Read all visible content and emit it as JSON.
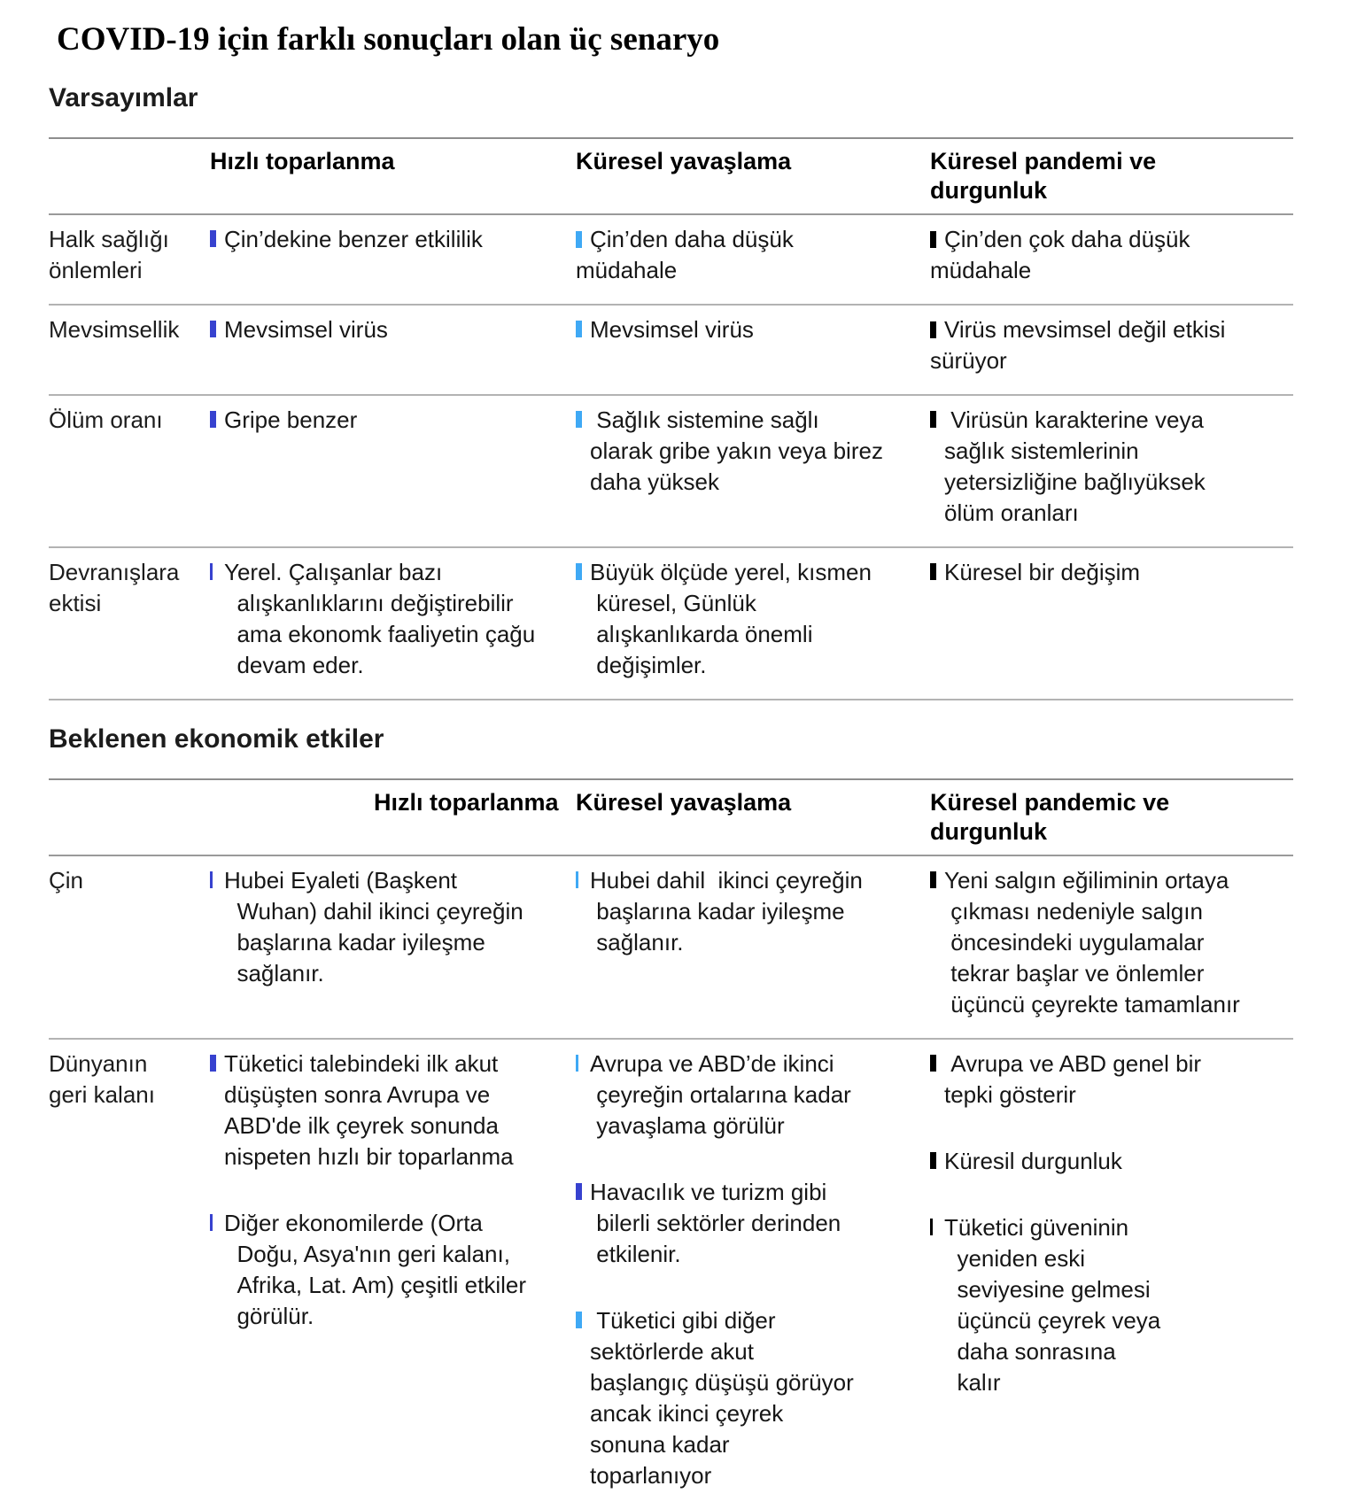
{
  "page_title": "COVID-19 için farklı sonuçları olan üç senaryo",
  "colors": {
    "dark_blue": "#3742cf",
    "light_blue": "#3fa9f5",
    "black": "#000000"
  },
  "sections": [
    {
      "heading": "Varsayımlar",
      "columns": [
        "Hızlı toparlanma",
        "Küresel yavaşlama",
        "Küresel pandemi ve\ndurgunluk"
      ],
      "rows": [
        {
          "label": "Halk sağlığı\nönlemleri",
          "cells": [
            {
              "items": [
                {
                  "text": "Çin’dekine benzer etkililik",
                  "bullet": "dark_blue",
                  "weight": "thick",
                  "hang": true
                }
              ]
            },
            {
              "items": [
                {
                  "text": "Çin’den daha düşük\nmüdahale",
                  "bullet": "light_blue",
                  "weight": "thick",
                  "hang": false
                }
              ]
            },
            {
              "items": [
                {
                  "text": "Çin’den çok daha düşük\nmüdahale",
                  "bullet": "black",
                  "weight": "thick",
                  "hang": false
                }
              ]
            }
          ]
        },
        {
          "label": "Mevsimsellik",
          "cells": [
            {
              "items": [
                {
                  "text": "Mevsimsel virüs",
                  "bullet": "dark_blue",
                  "weight": "thick",
                  "hang": true
                }
              ]
            },
            {
              "items": [
                {
                  "text": "Mevsimsel virüs",
                  "bullet": "light_blue",
                  "weight": "thick",
                  "hang": true
                }
              ]
            },
            {
              "items": [
                {
                  "text": "Virüs mevsimsel değil etkisi\nsürüyor",
                  "bullet": "black",
                  "weight": "thick",
                  "hang": false
                }
              ]
            }
          ]
        },
        {
          "label": "Ölüm oranı",
          "cells": [
            {
              "items": [
                {
                  "text": "Gripe benzer",
                  "bullet": "dark_blue",
                  "weight": "thick",
                  "hang": true
                }
              ]
            },
            {
              "items": [
                {
                  "text": " Sağlık sistemine sağlı\nolarak gribe yakın veya birez\ndaha yüksek",
                  "bullet": "light_blue",
                  "weight": "thick",
                  "hang": true
                }
              ]
            },
            {
              "items": [
                {
                  "text": " Virüsün karakterine veya\nsağlık sistemlerinin\nyetersizliğine bağlıyüksek\nölüm oranları",
                  "bullet": "black",
                  "weight": "thick",
                  "hang": true
                }
              ]
            }
          ]
        },
        {
          "label": "Devranışlara\nektisi",
          "cells": [
            {
              "items": [
                {
                  "text": "Yerel. Çalışanlar bazı\n  alışkanlıklarını değiştirebilir\n  ama ekonomk faaliyetin çağu\n  devam eder.",
                  "bullet": "dark_blue",
                  "weight": "thin",
                  "hang": true
                }
              ]
            },
            {
              "items": [
                {
                  "text": "Büyük ölçüde yerel, kısmen\n küresel, Günlük\n alışkanlıkarda önemli\n değişimler.",
                  "bullet": "light_blue",
                  "weight": "thick",
                  "hang": true
                }
              ]
            },
            {
              "items": [
                {
                  "text": "Küresel bir değişim",
                  "bullet": "black",
                  "weight": "thick",
                  "hang": true
                }
              ]
            }
          ]
        }
      ]
    },
    {
      "heading": "Beklenen ekonomik etkiler",
      "columns": [
        "Hızlı toparlanma",
        "Küresel yavaşlama",
        "Küresel pandemic ve durgunluk"
      ],
      "rows": [
        {
          "label": "Çin",
          "cells": [
            {
              "items": [
                {
                  "text": "Hubei Eyaleti (Başkent\n  Wuhan) dahil ikinci çeyreğin\n  başlarına kadar iyileşme\n  sağlanır.",
                  "bullet": "dark_blue",
                  "weight": "thin",
                  "hang": true
                }
              ]
            },
            {
              "items": [
                {
                  "text": "Hubei dahil  ikinci çeyreğin\n başlarına kadar iyileşme\n sağlanır.",
                  "bullet": "light_blue",
                  "weight": "thin",
                  "hang": true
                }
              ]
            },
            {
              "items": [
                {
                  "text": "Yeni salgın eğiliminin ortaya\n çıkması nedeniyle salgın\n öncesindeki uygulamalar\n tekrar başlar ve önlemler\n üçüncü çeyrekte tamamlanır",
                  "bullet": "black",
                  "weight": "thick",
                  "hang": true
                }
              ]
            }
          ]
        },
        {
          "label": "Dünyanın\ngeri kalanı",
          "cells": [
            {
              "items": [
                {
                  "text": "Tüketici talebindeki ilk akut\ndüşüşten sonra Avrupa ve\nABD'de ilk çeyrek sonunda\nnispeten hızlı bir toparlanma",
                  "bullet": "dark_blue",
                  "weight": "thick",
                  "hang": true
                },
                {
                  "text": "Diğer ekonomilerde (Orta\n  Doğu, Asya'nın geri kalanı,\n  Afrika, Lat. Am) çeşitli etkiler\n  görülür.",
                  "bullet": "dark_blue",
                  "weight": "thin",
                  "hang": true
                }
              ]
            },
            {
              "items": [
                {
                  "text": "Avrupa ve ABD’de ikinci\n çeyreğin ortalarına kadar\n yavaşlama görülür",
                  "bullet": "light_blue",
                  "weight": "thin",
                  "hang": true
                },
                {
                  "text": "Havacılık ve turizm gibi\n bilerli sektörler derinden\n etkilenir.",
                  "bullet": "dark_blue",
                  "weight": "thick",
                  "hang": true
                },
                {
                  "text": " Tüketici gibi diğer\nsektörlerde akut\nbaşlangıç düşüşü görüyor\nancak ikinci çeyrek\nsonuna kadar\ntoparlanıyor",
                  "bullet": "light_blue",
                  "weight": "thick",
                  "hang": true
                }
              ]
            },
            {
              "items": [
                {
                  "text": " Avrupa ve ABD genel bir\ntepki gösterir",
                  "bullet": "black",
                  "weight": "thick",
                  "hang": true
                },
                {
                  "text": "Küresil durgunluk",
                  "bullet": "black",
                  "weight": "thick",
                  "hang": true
                },
                {
                  "text": "Tüketici güveninin\n  yeniden eski\n  seviyesine gelmesi\n  üçüncü çeyrek veya\n  daha sonrasına\n  kalır",
                  "bullet": "black",
                  "weight": "thin",
                  "hang": true
                }
              ]
            }
          ]
        }
      ]
    }
  ]
}
